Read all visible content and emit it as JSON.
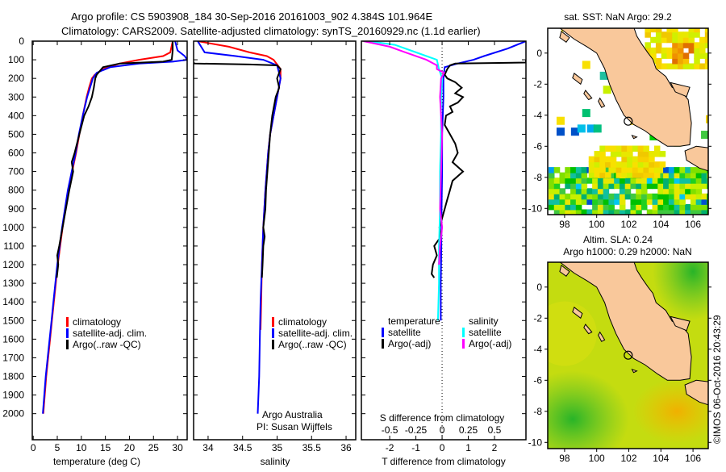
{
  "title": {
    "line1": "Argo profile: CS 5903908_184 30-Sep-2016 20161003_902 4.384S 101.964E",
    "line2": "Climatology: CARS2009. Satellite-adjusted climatology: synTS_20160929.nc (1.1d earlier)"
  },
  "colors": {
    "climatology": "#ff0000",
    "satellite": "#0000ff",
    "argo": "#000000",
    "s_satellite": "#00ffff",
    "s_argo": "#ff00ff",
    "land": "#f9c89b"
  },
  "chart_data": [
    {
      "type": "line",
      "name": "temperature",
      "xlabel": "temperature (deg C)",
      "ylabel": "",
      "xlim": [
        -0.2,
        32
      ],
      "ylim": [
        2140,
        0
      ],
      "xticks": [
        "0",
        "5",
        "10",
        "15",
        "20",
        "25",
        "30"
      ],
      "yticks": [
        "0",
        "100",
        "200",
        "300",
        "400",
        "500",
        "600",
        "700",
        "800",
        "900",
        "1000",
        "1100",
        "1200",
        "1300",
        "1400",
        "1500",
        "1600",
        "1700",
        "1800",
        "1900",
        "2000"
      ],
      "legend": [
        "climatology",
        "satellite-adj. clim.",
        "Argo(..raw -QC)"
      ],
      "series": [
        {
          "name": "climatology",
          "color": "#ff0000",
          "depth": [
            0,
            60,
            80,
            100,
            120,
            150,
            180,
            200,
            250,
            300,
            400,
            500,
            600,
            700,
            800,
            900,
            1000,
            1100,
            1200,
            1300,
            1400,
            1500,
            1600,
            1700,
            1800,
            1900,
            2000
          ],
          "values": [
            29,
            28.5,
            27,
            22,
            18,
            14.5,
            12.8,
            12.2,
            11.6,
            11.1,
            10.3,
            9.6,
            8.9,
            8.1,
            7.3,
            6.7,
            6.1,
            5.6,
            5.1,
            4.7,
            4.3,
            3.9,
            3.5,
            3.1,
            2.7,
            2.4,
            2.1
          ]
        },
        {
          "name": "satellite-adj. clim.",
          "color": "#0000ff",
          "depth": [
            0,
            50,
            80,
            100,
            110,
            120,
            140,
            170,
            200,
            250,
            300,
            400,
            500,
            600,
            700,
            800,
            900,
            1000,
            1100,
            1200,
            1300,
            1400,
            1500,
            1600,
            1700,
            1800,
            1900,
            2000
          ],
          "values": [
            29.5,
            30,
            31.5,
            32,
            29,
            22,
            16,
            13.2,
            12.4,
            11.8,
            11.2,
            10.3,
            9.5,
            8.8,
            8.0,
            7.2,
            6.6,
            6.0,
            5.5,
            5.0,
            4.6,
            4.2,
            3.8,
            3.4,
            3.0,
            2.6,
            2.3,
            2.0
          ]
        },
        {
          "name": "Argo(..raw -QC)",
          "color": "#000000",
          "depth": [
            0,
            50,
            100,
            110,
            120,
            140,
            180,
            200,
            250,
            300,
            350,
            400,
            500,
            600,
            650,
            700,
            800,
            900,
            1000,
            1100,
            1150,
            1200,
            1270
          ],
          "values": [
            29,
            29,
            28.8,
            27,
            18,
            14.5,
            13.2,
            12.9,
            12.6,
            12.2,
            11.5,
            10.6,
            9.6,
            8.6,
            8.0,
            8.3,
            7.5,
            6.8,
            6.1,
            5.4,
            5.0,
            5.2,
            4.9
          ]
        }
      ]
    },
    {
      "type": "line",
      "name": "salinity",
      "xlabel": "salinity",
      "xlim": [
        33.79,
        36.14
      ],
      "ylim": [
        2140,
        0
      ],
      "xticks": [
        "34",
        "34.5",
        "35",
        "35.5",
        "36"
      ],
      "legend": [
        "climatology",
        "satellite-adj. clim.",
        "Argo(..raw -QC)"
      ],
      "annotation": [
        "Argo Australia",
        "PI: Susan Wijffels"
      ],
      "series": [
        {
          "name": "climatology",
          "color": "#ff0000",
          "depth": [
            0,
            30,
            60,
            80,
            100,
            150,
            200,
            300,
            400,
            500,
            600,
            700,
            800,
            1000,
            1200,
            1400,
            1550
          ],
          "values": [
            33.85,
            34.3,
            34.6,
            34.85,
            34.95,
            35.05,
            35.05,
            35.0,
            34.95,
            34.9,
            34.87,
            34.85,
            34.83,
            34.8,
            34.78,
            34.77,
            34.76
          ]
        },
        {
          "name": "satellite-adj. clim.",
          "color": "#0000ff",
          "depth": [
            0,
            60,
            80,
            100,
            130,
            200,
            300,
            400,
            500,
            600,
            700,
            800,
            1000,
            1200,
            1400,
            1600,
            1800,
            2000
          ],
          "values": [
            33.85,
            33.95,
            34.4,
            34.8,
            35.0,
            35.05,
            35.0,
            34.95,
            34.9,
            34.87,
            34.85,
            34.83,
            34.8,
            34.78,
            34.76,
            34.75,
            34.74,
            34.72
          ]
        },
        {
          "name": "Argo(..raw -QC)",
          "color": "#000000",
          "depth": [
            115,
            120,
            125,
            130,
            150,
            200,
            250,
            300,
            400,
            500,
            600,
            700,
            800,
            900,
            1000,
            1050,
            1100,
            1200,
            1270
          ],
          "values": [
            33.8,
            33.8,
            34.6,
            35.0,
            35.05,
            35.0,
            35.03,
            34.98,
            34.93,
            34.9,
            34.88,
            34.86,
            34.84,
            34.83,
            34.8,
            34.82,
            34.8,
            34.79,
            34.78
          ]
        }
      ]
    },
    {
      "type": "line",
      "name": "difference",
      "xlabel": "T difference from climatology",
      "x2label": "S difference from climatology",
      "xlim": [
        -3.08,
        3.2
      ],
      "ylim": [
        2140,
        0
      ],
      "xticks": [
        "-2",
        "-1",
        "0",
        "1",
        "2"
      ],
      "x2ticks": [
        "-0.5",
        "-0.25",
        "0",
        "0.25",
        "0.5"
      ],
      "legend_t_title": "temperature",
      "legend_s_title": "salinity",
      "legend": [
        "satellite",
        "Argo(-adj)",
        "satellite",
        "Argo(-adj)"
      ],
      "series": [
        {
          "name": "T satellite",
          "color": "#0000ff",
          "depth": [
            0,
            40,
            80,
            100,
            120,
            140,
            200,
            300,
            500,
            700,
            900,
            1100,
            1300,
            1500
          ],
          "values": [
            3.2,
            2.5,
            1.6,
            1.2,
            0.6,
            0.1,
            0.05,
            0.05,
            0.0,
            0.0,
            -0.02,
            -0.03,
            -0.05,
            -0.05
          ]
        },
        {
          "name": "T Argo(-adj)",
          "color": "#000000",
          "depth": [
            100,
            115,
            120,
            130,
            150,
            180,
            200,
            220,
            250,
            280,
            300,
            330,
            350,
            380,
            400,
            450,
            500,
            550,
            600,
            650,
            700,
            750,
            800,
            850,
            900,
            950,
            1000,
            1050,
            1100,
            1150,
            1200,
            1250,
            1270
          ],
          "values": [
            3.2,
            3.2,
            0.5,
            0.3,
            0.2,
            0.1,
            0.2,
            0.5,
            0.75,
            0.5,
            0.8,
            0.6,
            0.3,
            0.4,
            0.15,
            0.1,
            0.3,
            0.5,
            0.6,
            0.4,
            0.8,
            0.4,
            0.3,
            0.2,
            0.1,
            0.0,
            -0.1,
            -0.05,
            -0.3,
            -0.2,
            -0.35,
            -0.4,
            -0.3
          ]
        },
        {
          "name": "S satellite",
          "color": "#00ffff",
          "depth": [
            0,
            20,
            50,
            80,
            100,
            150,
            200,
            300,
            500,
            700,
            900,
            1100,
            1300,
            1500
          ],
          "values": [
            -0.7,
            -0.45,
            -0.3,
            -0.15,
            -0.05,
            -0.03,
            0.0,
            -0.01,
            -0.01,
            -0.02,
            -0.02,
            -0.03,
            -0.03,
            -0.04
          ]
        },
        {
          "name": "S Argo(-adj)",
          "color": "#ff00ff",
          "depth": [
            0,
            30,
            60,
            100,
            130,
            150,
            170,
            200,
            300,
            500,
            700,
            900,
            1000,
            1100,
            1200
          ],
          "values": [
            -0.75,
            -0.5,
            -0.35,
            -0.15,
            -0.05,
            -0.05,
            0.02,
            -0.01,
            -0.02,
            0.0,
            -0.01,
            -0.02,
            0.0,
            -0.02,
            -0.03
          ]
        }
      ]
    },
    {
      "type": "heatmap",
      "name": "sst-map",
      "title": "sat. SST: NaN Argo: 29.2",
      "xlim": [
        96.95,
        106.95
      ],
      "ylim": [
        -10.4,
        1.6
      ],
      "xticks": [
        "98",
        "100",
        "102",
        "104",
        "106"
      ],
      "yticks": [
        "0",
        "-2",
        "-4",
        "-6",
        "-8",
        "-10"
      ],
      "argo_position": {
        "lon": 101.964,
        "lat": -4.384
      }
    },
    {
      "type": "heatmap",
      "name": "sla-map",
      "title_line1": "Altim. SLA: 0.24",
      "title_line2": "Argo h1000: 0.29 h2000: NaN",
      "xlim": [
        96.95,
        106.95
      ],
      "ylim": [
        -10.4,
        1.6
      ],
      "xticks": [
        "98",
        "100",
        "102",
        "104",
        "106"
      ],
      "yticks": [
        "0",
        "-2",
        "-4",
        "-6",
        "-8",
        "-10"
      ],
      "argo_position": {
        "lon": 101.964,
        "lat": -4.384
      }
    }
  ],
  "credit": "©IMOS 06-Oct-2016 20:43:29"
}
